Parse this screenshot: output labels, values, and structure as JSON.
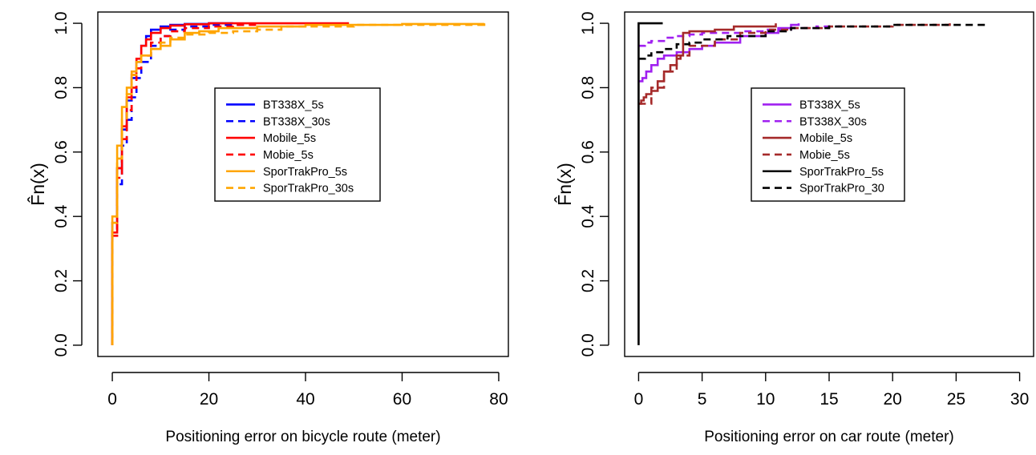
{
  "chart_data": [
    {
      "type": "line",
      "title": "",
      "xlabel": "Positioning error on bicycle route (meter)",
      "ylabel": "F̂n(x)",
      "xlim": [
        -3,
        82
      ],
      "ylim": [
        -0.035,
        1.035
      ],
      "xticks": [
        0,
        20,
        40,
        60,
        80
      ],
      "yticks": [
        0.0,
        0.2,
        0.4,
        0.6,
        0.8,
        1.0
      ],
      "xtick_labels": [
        "0",
        "20",
        "40",
        "60",
        "80"
      ],
      "ytick_labels": [
        "0.0",
        "0.2",
        "0.4",
        "0.6",
        "0.8",
        "1.0"
      ],
      "grid": false,
      "legend_position": "center",
      "series": [
        {
          "name": "BT338X_5s",
          "color": "#0000ff",
          "dash": "solid",
          "x": [
            0,
            0,
            1,
            2,
            3,
            4,
            5,
            6,
            7,
            8,
            10,
            12,
            15,
            20,
            25
          ],
          "y": [
            0,
            0.38,
            0.55,
            0.67,
            0.76,
            0.83,
            0.88,
            0.93,
            0.96,
            0.98,
            0.99,
            0.995,
            0.998,
            1.0,
            1.0
          ]
        },
        {
          "name": "BT338X_30s",
          "color": "#0000ff",
          "dash": "dashed",
          "x": [
            0,
            0,
            1,
            2,
            3,
            4,
            5,
            6,
            8,
            10,
            12,
            15,
            20,
            28
          ],
          "y": [
            0,
            0.36,
            0.5,
            0.62,
            0.7,
            0.77,
            0.83,
            0.88,
            0.93,
            0.96,
            0.98,
            0.99,
            0.995,
            1.0
          ]
        },
        {
          "name": "Mobile_5s",
          "color": "#ff0000",
          "dash": "solid",
          "x": [
            0,
            0,
            1,
            2,
            3,
            4,
            5,
            6,
            7,
            8,
            10,
            12,
            15,
            20,
            30,
            49
          ],
          "y": [
            0,
            0.35,
            0.55,
            0.68,
            0.77,
            0.84,
            0.89,
            0.93,
            0.95,
            0.97,
            0.985,
            0.993,
            0.997,
            1.0,
            1.0,
            1.0
          ]
        },
        {
          "name": "Mobie_5s",
          "color": "#ff0000",
          "dash": "dashed",
          "x": [
            0,
            0,
            1,
            2,
            3,
            4,
            5,
            6,
            8,
            10,
            12,
            15,
            20,
            25,
            30
          ],
          "y": [
            0,
            0.34,
            0.52,
            0.64,
            0.73,
            0.8,
            0.86,
            0.9,
            0.94,
            0.96,
            0.975,
            0.985,
            0.99,
            0.995,
            1.0
          ]
        },
        {
          "name": "SporTrakPro_5s",
          "color": "#ffa500",
          "dash": "solid",
          "x": [
            0,
            0,
            1,
            2,
            3,
            4,
            5,
            6,
            8,
            10,
            12,
            15,
            18,
            22,
            30,
            40,
            60,
            77
          ],
          "y": [
            0,
            0.4,
            0.62,
            0.74,
            0.8,
            0.85,
            0.88,
            0.9,
            0.92,
            0.93,
            0.95,
            0.97,
            0.975,
            0.985,
            0.99,
            0.995,
            0.998,
            1.0
          ]
        },
        {
          "name": "SporTrakPro_30s",
          "color": "#ffa500",
          "dash": "dashed",
          "x": [
            0,
            0,
            1,
            2,
            3,
            4,
            5,
            6,
            8,
            10,
            12,
            15,
            20,
            25,
            30,
            35,
            50,
            77
          ],
          "y": [
            0,
            0.38,
            0.58,
            0.7,
            0.78,
            0.84,
            0.88,
            0.9,
            0.92,
            0.94,
            0.955,
            0.965,
            0.97,
            0.975,
            0.98,
            0.99,
            0.995,
            1.0
          ]
        }
      ]
    },
    {
      "type": "line",
      "title": "",
      "xlabel": "Positioning error on car route (meter)",
      "ylabel": "F̂n(x)",
      "xlim": [
        -1.1,
        31.1
      ],
      "ylim": [
        -0.035,
        1.035
      ],
      "xticks": [
        0,
        5,
        10,
        15,
        20,
        25,
        30
      ],
      "yticks": [
        0.0,
        0.2,
        0.4,
        0.6,
        0.8,
        1.0
      ],
      "xtick_labels": [
        "0",
        "5",
        "10",
        "15",
        "20",
        "25",
        "30"
      ],
      "ytick_labels": [
        "0.0",
        "0.2",
        "0.4",
        "0.6",
        "0.8",
        "1.0"
      ],
      "grid": false,
      "legend_position": "center",
      "series": [
        {
          "name": "BT338X_5s",
          "color": "#a020f0",
          "dash": "solid",
          "x": [
            0,
            0.3,
            0.6,
            1,
            1.5,
            2,
            3,
            4,
            5,
            6,
            8,
            10,
            11,
            12,
            12.6
          ],
          "y": [
            0.82,
            0.83,
            0.85,
            0.87,
            0.89,
            0.9,
            0.91,
            0.92,
            0.93,
            0.94,
            0.96,
            0.97,
            0.985,
            0.995,
            1.0
          ]
        },
        {
          "name": "BT338X_30s",
          "color": "#a020f0",
          "dash": "dashed",
          "x": [
            0,
            0.5,
            1,
            2,
            3,
            4,
            5,
            6,
            8,
            10,
            12,
            14,
            16
          ],
          "y": [
            0.93,
            0.94,
            0.945,
            0.955,
            0.96,
            0.965,
            0.97,
            0.97,
            0.975,
            0.98,
            0.985,
            0.99,
            0.99
          ]
        },
        {
          "name": "Mobile_5s",
          "color": "#a52a2a",
          "dash": "solid",
          "x": [
            0,
            0.2,
            0.4,
            0.6,
            1,
            1.5,
            2,
            2.5,
            3,
            3.3,
            3.5,
            4,
            6,
            7.5,
            10,
            10.8
          ],
          "y": [
            0.75,
            0.76,
            0.77,
            0.78,
            0.79,
            0.82,
            0.85,
            0.87,
            0.89,
            0.9,
            0.97,
            0.975,
            0.98,
            0.99,
            0.99,
            1.0
          ]
        },
        {
          "name": "Mobie_5s",
          "color": "#a52a2a",
          "dash": "dashed",
          "x": [
            0,
            1,
            2,
            3,
            4,
            6,
            8,
            10,
            12,
            15,
            20,
            24.5
          ],
          "y": [
            0.75,
            0.8,
            0.85,
            0.9,
            0.93,
            0.95,
            0.97,
            0.98,
            0.985,
            0.99,
            0.995,
            1.0
          ]
        },
        {
          "name": "SporTrakPro_5s",
          "color": "#000000",
          "dash": "solid",
          "x": [
            0,
            0,
            1.9
          ],
          "y": [
            0,
            1.0,
            1.0
          ]
        },
        {
          "name": "SporTrakPro_30",
          "color": "#000000",
          "dash": "dashed",
          "x": [
            0,
            0.5,
            1,
            2,
            3,
            4,
            5,
            7,
            10,
            12,
            15,
            20,
            27.5
          ],
          "y": [
            0.89,
            0.9,
            0.91,
            0.92,
            0.935,
            0.94,
            0.95,
            0.96,
            0.975,
            0.985,
            0.99,
            0.995,
            0.995
          ]
        }
      ]
    }
  ]
}
